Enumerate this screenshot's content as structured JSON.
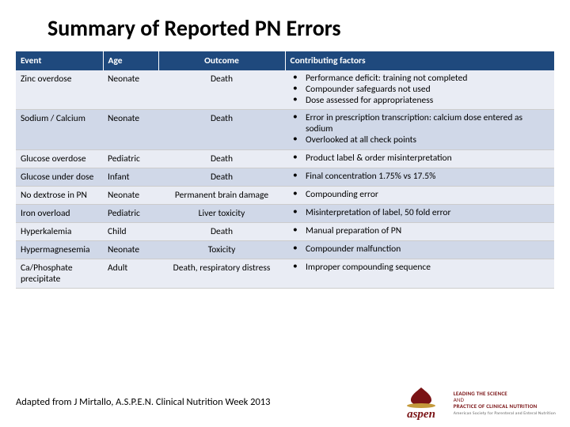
{
  "title": "Summary of Reported PN Errors",
  "columns": [
    "Event",
    "Age",
    "Outcome",
    "Contributing factors"
  ],
  "rows": [
    {
      "event": "Zinc overdose",
      "age": "Neonate",
      "outcome": "Death",
      "factors": [
        "Performance deficit: training not completed",
        "Compounder safeguards not used",
        "Dose assessed for appropriateness"
      ]
    },
    {
      "event": "Sodium / Calcium",
      "age": "Neonate",
      "outcome": "Death",
      "factors": [
        "Error in prescription transcription: calcium dose entered as sodium",
        "Overlooked at all check points"
      ]
    },
    {
      "event": "Glucose overdose",
      "age": "Pediatric",
      "outcome": "Death",
      "factors": [
        "Product label & order misinterpretation"
      ]
    },
    {
      "event": "Glucose under dose",
      "age": "Infant",
      "outcome": "Death",
      "factors": [
        "Final concentration 1.75% vs 17.5%"
      ]
    },
    {
      "event": "No dextrose in PN",
      "age": "Neonate",
      "outcome": "Permanent brain damage",
      "factors": [
        "Compounding error"
      ]
    },
    {
      "event": "Iron overload",
      "age": "Pediatric",
      "outcome": "Liver toxicity",
      "factors": [
        "Misinterpretation of label, 50 fold error"
      ]
    },
    {
      "event": "Hyperkalemia",
      "age": "Child",
      "outcome": "Death",
      "factors": [
        "Manual preparation of PN"
      ]
    },
    {
      "event": "Hypermagnesemia",
      "age": "Neonate",
      "outcome": "Toxicity",
      "factors": [
        "Compounder malfunction"
      ]
    },
    {
      "event": "Ca/Phosphate precipitate",
      "age": "Adult",
      "outcome": "Death, respiratory distress",
      "factors": [
        "Improper compounding sequence"
      ]
    }
  ],
  "citation": "Adapted from J Mirtallo, A.S.P.E.N. Clinical Nutrition Week 2013",
  "logo": {
    "brand": "aspen",
    "tagline1": "LEADING THE SCIENCE",
    "tagline2": "AND",
    "tagline3": "PRACTICE OF CLINICAL NUTRITION",
    "primary_color": "#7a1315",
    "accent_color": "#c49a3a"
  },
  "colors": {
    "header_bg": "#1f497d",
    "row_odd": "#e9ecf4",
    "row_even": "#d0d8e8"
  }
}
